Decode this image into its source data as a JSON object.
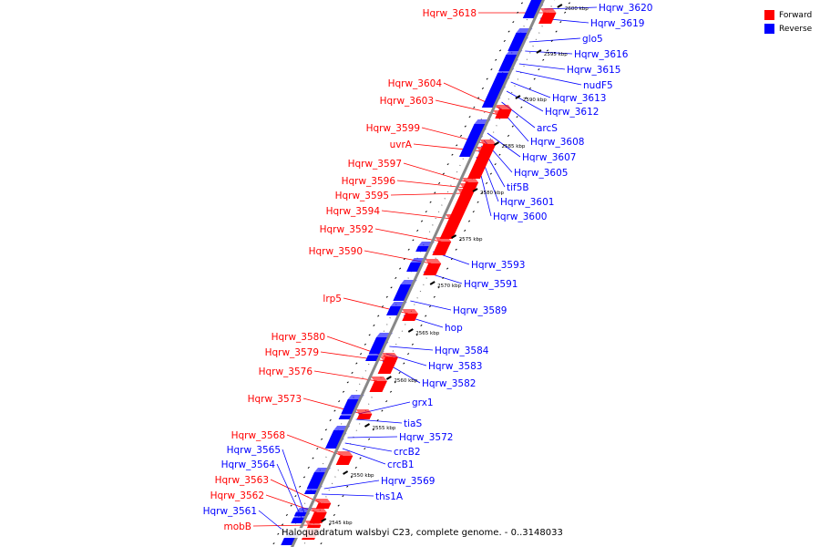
{
  "caption": "Haloquadratum walsbyi C23, complete genome. - 0..3148033",
  "legend": [
    {
      "label": "Forward",
      "color": "#ff0000"
    },
    {
      "label": "Reverse",
      "color": "#0000ff"
    }
  ],
  "colors": {
    "forward": "#ff0000",
    "reverse": "#0000ff",
    "backbone": "#888888"
  },
  "ticks": [
    "2600 kbp",
    "2595 kbp",
    "2590 kbp",
    "2585 kbp",
    "2580 kbp",
    "2575 kbp",
    "2570 kbp",
    "2565 kbp",
    "2560 kbp",
    "2555 kbp",
    "2550 kbp",
    "2545 kbp"
  ],
  "forward_genes": [
    "Hqrw_3618",
    "Hqrw_3604",
    "Hqrw_3603",
    "Hqrw_3599",
    "uvrA",
    "Hqrw_3597",
    "Hqrw_3596",
    "Hqrw_3595",
    "Hqrw_3594",
    "Hqrw_3592",
    "Hqrw_3590",
    "lrp5",
    "Hqrw_3580",
    "Hqrw_3579",
    "Hqrw_3576",
    "Hqrw_3573",
    "Hqrw_3568",
    "Hqrw_3563",
    "Hqrw_3562",
    "mobB"
  ],
  "reverse_genes": [
    "Hqrw_3620",
    "Hqrw_3619",
    "glo5",
    "Hqrw_3616",
    "Hqrw_3615",
    "nudF5",
    "Hqrw_3613",
    "Hqrw_3612",
    "arcS",
    "Hqrw_3608",
    "Hqrw_3607",
    "Hqrw_3605",
    "tif5B",
    "Hqrw_3601",
    "Hqrw_3600",
    "Hqrw_3593",
    "Hqrw_3591",
    "Hqrw_3589",
    "hop",
    "Hqrw_3584",
    "Hqrw_3583",
    "Hqrw_3582",
    "grx1",
    "tiaS",
    "Hqrw_3572",
    "crcB2",
    "crcB1",
    "Hqrw_3569",
    "ths1A"
  ],
  "reverse_genes_left": [
    "Hqrw_3565",
    "Hqrw_3564",
    "Hqrw_3561"
  ]
}
